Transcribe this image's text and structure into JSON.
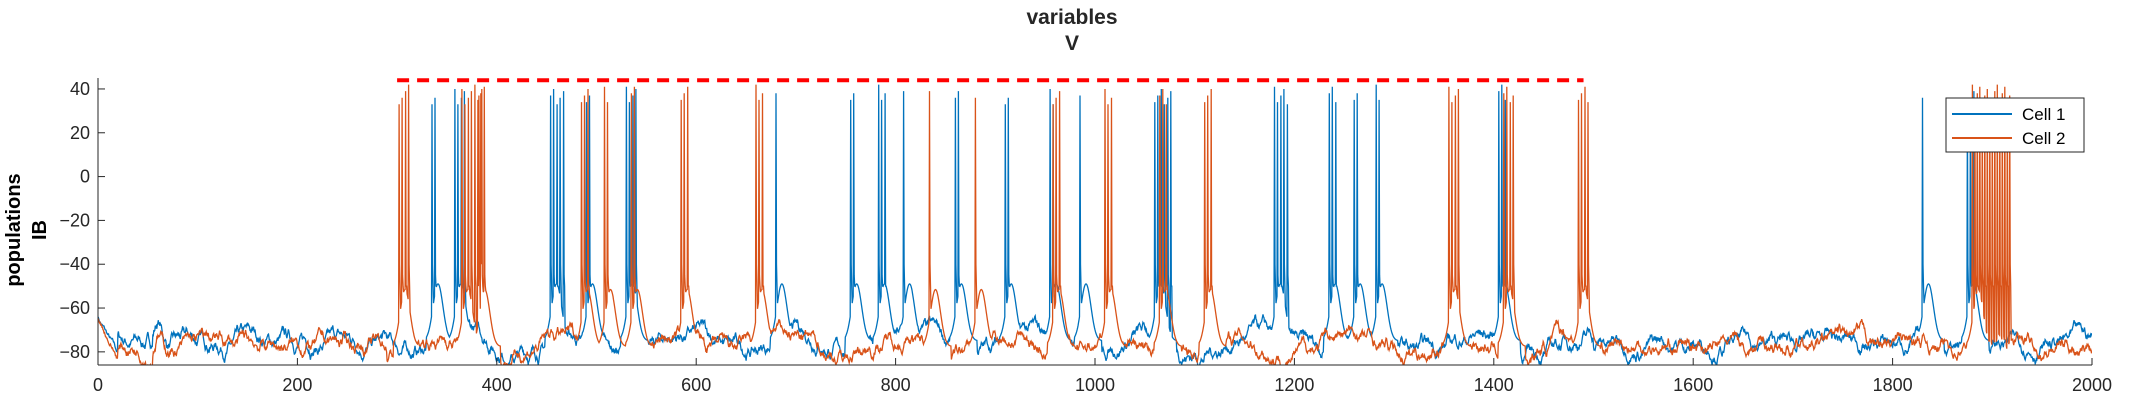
{
  "chart_data": {
    "type": "line",
    "title": [
      "variables",
      "V"
    ],
    "ylabel": [
      "populations",
      "IB"
    ],
    "xlabel": "",
    "xlim": [
      0,
      2000
    ],
    "ylim": [
      -86,
      45
    ],
    "x_ticks": [
      0,
      200,
      400,
      600,
      800,
      1000,
      1200,
      1400,
      1600,
      1800,
      2000
    ],
    "y_ticks": [
      -80,
      -60,
      -40,
      -20,
      0,
      20,
      40
    ],
    "grid": false,
    "legend_position": "top-right",
    "series": [
      {
        "name": "Cell 1",
        "color": "#0072BD",
        "baseline": -76,
        "spikes": [
          {
            "t": 335,
            "n": 2
          },
          {
            "t": 358,
            "n": 4
          },
          {
            "t": 454,
            "n": 5
          },
          {
            "t": 490,
            "n": 2
          },
          {
            "t": 530,
            "n": 4
          },
          {
            "t": 680,
            "n": 1
          },
          {
            "t": 755,
            "n": 2
          },
          {
            "t": 783,
            "n": 3
          },
          {
            "t": 808,
            "n": 1
          },
          {
            "t": 860,
            "n": 2
          },
          {
            "t": 910,
            "n": 2
          },
          {
            "t": 955,
            "n": 2
          },
          {
            "t": 985,
            "n": 1
          },
          {
            "t": 1060,
            "n": 6
          },
          {
            "t": 1180,
            "n": 5
          },
          {
            "t": 1235,
            "n": 3
          },
          {
            "t": 1260,
            "n": 2
          },
          {
            "t": 1282,
            "n": 2
          },
          {
            "t": 1405,
            "n": 3
          },
          {
            "t": 1830,
            "n": 1
          },
          {
            "t": 1875,
            "n": 3
          }
        ]
      },
      {
        "name": "Cell 2",
        "color": "#D95319",
        "baseline": -77,
        "spikes": [
          {
            "t": 302,
            "n": 4
          },
          {
            "t": 365,
            "n": 8
          },
          {
            "t": 382,
            "n": 2
          },
          {
            "t": 485,
            "n": 3
          },
          {
            "t": 508,
            "n": 2
          },
          {
            "t": 535,
            "n": 2
          },
          {
            "t": 585,
            "n": 3
          },
          {
            "t": 660,
            "n": 3
          },
          {
            "t": 834,
            "n": 1
          },
          {
            "t": 880,
            "n": 1
          },
          {
            "t": 958,
            "n": 3
          },
          {
            "t": 1010,
            "n": 3
          },
          {
            "t": 1065,
            "n": 3
          },
          {
            "t": 1110,
            "n": 3
          },
          {
            "t": 1355,
            "n": 4
          },
          {
            "t": 1410,
            "n": 4
          },
          {
            "t": 1485,
            "n": 4
          },
          {
            "t": 1880,
            "n": 16
          }
        ]
      }
    ],
    "annotations": [
      {
        "type": "dashed-line",
        "color": "#FF0000",
        "x_start": 300,
        "x_end": 1490,
        "y": 44
      }
    ]
  }
}
